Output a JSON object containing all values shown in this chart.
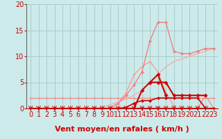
{
  "bg_color": "#cceaea",
  "grid_color": "#aacccc",
  "xlabel": "Vent moyen/en rafales ( km/h )",
  "xlabel_color": "#cc0000",
  "tick_color": "#cc0000",
  "xlim": [
    -0.5,
    23.5
  ],
  "ylim": [
    0,
    20
  ],
  "yticks": [
    0,
    5,
    10,
    15,
    20
  ],
  "xticks": [
    0,
    1,
    2,
    3,
    4,
    5,
    6,
    7,
    8,
    9,
    10,
    11,
    12,
    13,
    14,
    15,
    16,
    17,
    18,
    19,
    20,
    21,
    22,
    23
  ],
  "series": [
    {
      "x": [
        0,
        1,
        2,
        3,
        4,
        5,
        6,
        7,
        8,
        9,
        10,
        11,
        12,
        13,
        14,
        15,
        16,
        17,
        18,
        19,
        20,
        21,
        22,
        23
      ],
      "y": [
        2,
        2,
        2,
        2,
        2,
        2,
        2,
        2,
        2,
        2,
        2,
        2,
        2,
        2,
        2,
        2,
        2,
        2,
        2,
        2,
        2,
        2,
        2,
        2
      ],
      "color": "#f09090",
      "lw": 1.0,
      "marker": "D",
      "ms": 2.0,
      "zorder": 2
    },
    {
      "x": [
        0,
        1,
        2,
        3,
        4,
        5,
        6,
        7,
        8,
        9,
        10,
        11,
        12,
        13,
        14,
        15,
        16,
        17,
        18,
        19,
        20,
        21,
        22,
        23
      ],
      "y": [
        0,
        0,
        0,
        0,
        0,
        0,
        0,
        0,
        0,
        0.2,
        0.7,
        1.2,
        1.8,
        2.5,
        3.5,
        5,
        6.5,
        8,
        9,
        9.5,
        10,
        10.5,
        11,
        11.5
      ],
      "color": "#f0b0b0",
      "lw": 1.0,
      "marker": null,
      "ms": 0,
      "zorder": 2
    },
    {
      "x": [
        0,
        1,
        2,
        3,
        4,
        5,
        6,
        7,
        8,
        9,
        10,
        11,
        12,
        13,
        14,
        15,
        16,
        17,
        18,
        19,
        20,
        21,
        22,
        23
      ],
      "y": [
        0,
        0,
        0,
        0,
        0,
        0,
        0,
        0,
        0,
        0,
        0,
        1,
        2.5,
        4.5,
        7,
        13,
        16.5,
        16.5,
        11,
        10.5,
        10.5,
        11,
        11.5,
        11.5
      ],
      "color": "#f08080",
      "lw": 1.0,
      "marker": "D",
      "ms": 2.5,
      "zorder": 3
    },
    {
      "x": [
        10,
        11,
        12,
        13,
        14,
        15,
        16,
        17,
        18
      ],
      "y": [
        0,
        1,
        3,
        6.5,
        8,
        9,
        7,
        3,
        0.5
      ],
      "color": "#f0a0a0",
      "lw": 1.0,
      "marker": "D",
      "ms": 2.0,
      "zorder": 2
    },
    {
      "x": [
        0,
        1,
        2,
        3,
        4,
        5,
        6,
        7,
        8,
        9,
        10,
        11,
        12,
        13,
        14,
        15,
        16,
        17,
        18,
        19,
        20,
        21,
        22,
        23
      ],
      "y": [
        0,
        0,
        0,
        0,
        0,
        0,
        0,
        0,
        0,
        0,
        0,
        0,
        0.2,
        1,
        1.5,
        1.5,
        2,
        2,
        2,
        2,
        2,
        2,
        0,
        0
      ],
      "color": "#cc0000",
      "lw": 1.2,
      "marker": "D",
      "ms": 2.5,
      "zorder": 5
    },
    {
      "x": [
        12,
        13,
        14,
        15,
        16,
        17,
        18,
        19,
        20,
        21,
        22
      ],
      "y": [
        0,
        0,
        3.5,
        5,
        5,
        5,
        2.5,
        2.5,
        2.5,
        2.5,
        2.5
      ],
      "color": "#cc0000",
      "lw": 1.5,
      "marker": "D",
      "ms": 3,
      "zorder": 5
    },
    {
      "x": [
        15,
        16,
        17
      ],
      "y": [
        5,
        6.5,
        2.5
      ],
      "color": "#cc0000",
      "lw": 1.5,
      "marker": "D",
      "ms": 3,
      "zorder": 5
    },
    {
      "x": [
        21,
        22,
        23
      ],
      "y": [
        0,
        2.5,
        0
      ],
      "color": "#f09090",
      "lw": 1.0,
      "marker": "D",
      "ms": 2.0,
      "zorder": 3
    },
    {
      "x": [
        0,
        1,
        2,
        3,
        4,
        5,
        6,
        7,
        8,
        9,
        10,
        11,
        12,
        13,
        14,
        15,
        16,
        17,
        18,
        19,
        20,
        21,
        22,
        23
      ],
      "y": [
        0,
        0,
        0,
        0,
        0,
        0,
        0,
        0,
        0,
        0,
        0,
        0,
        0,
        0,
        0,
        0,
        0,
        0,
        0,
        0,
        0,
        0,
        0,
        0
      ],
      "color": "#cc0000",
      "lw": 1.2,
      "marker": "D",
      "ms": 2.5,
      "zorder": 4
    }
  ],
  "arrows_x": [
    0,
    1,
    2,
    3,
    4,
    5,
    6,
    7,
    8,
    9,
    10,
    11,
    12,
    13,
    14,
    15,
    16,
    17,
    18,
    19,
    20,
    21,
    22
  ],
  "arrow_color": "#cc0000",
  "font_size": 7,
  "font_size_label": 8
}
